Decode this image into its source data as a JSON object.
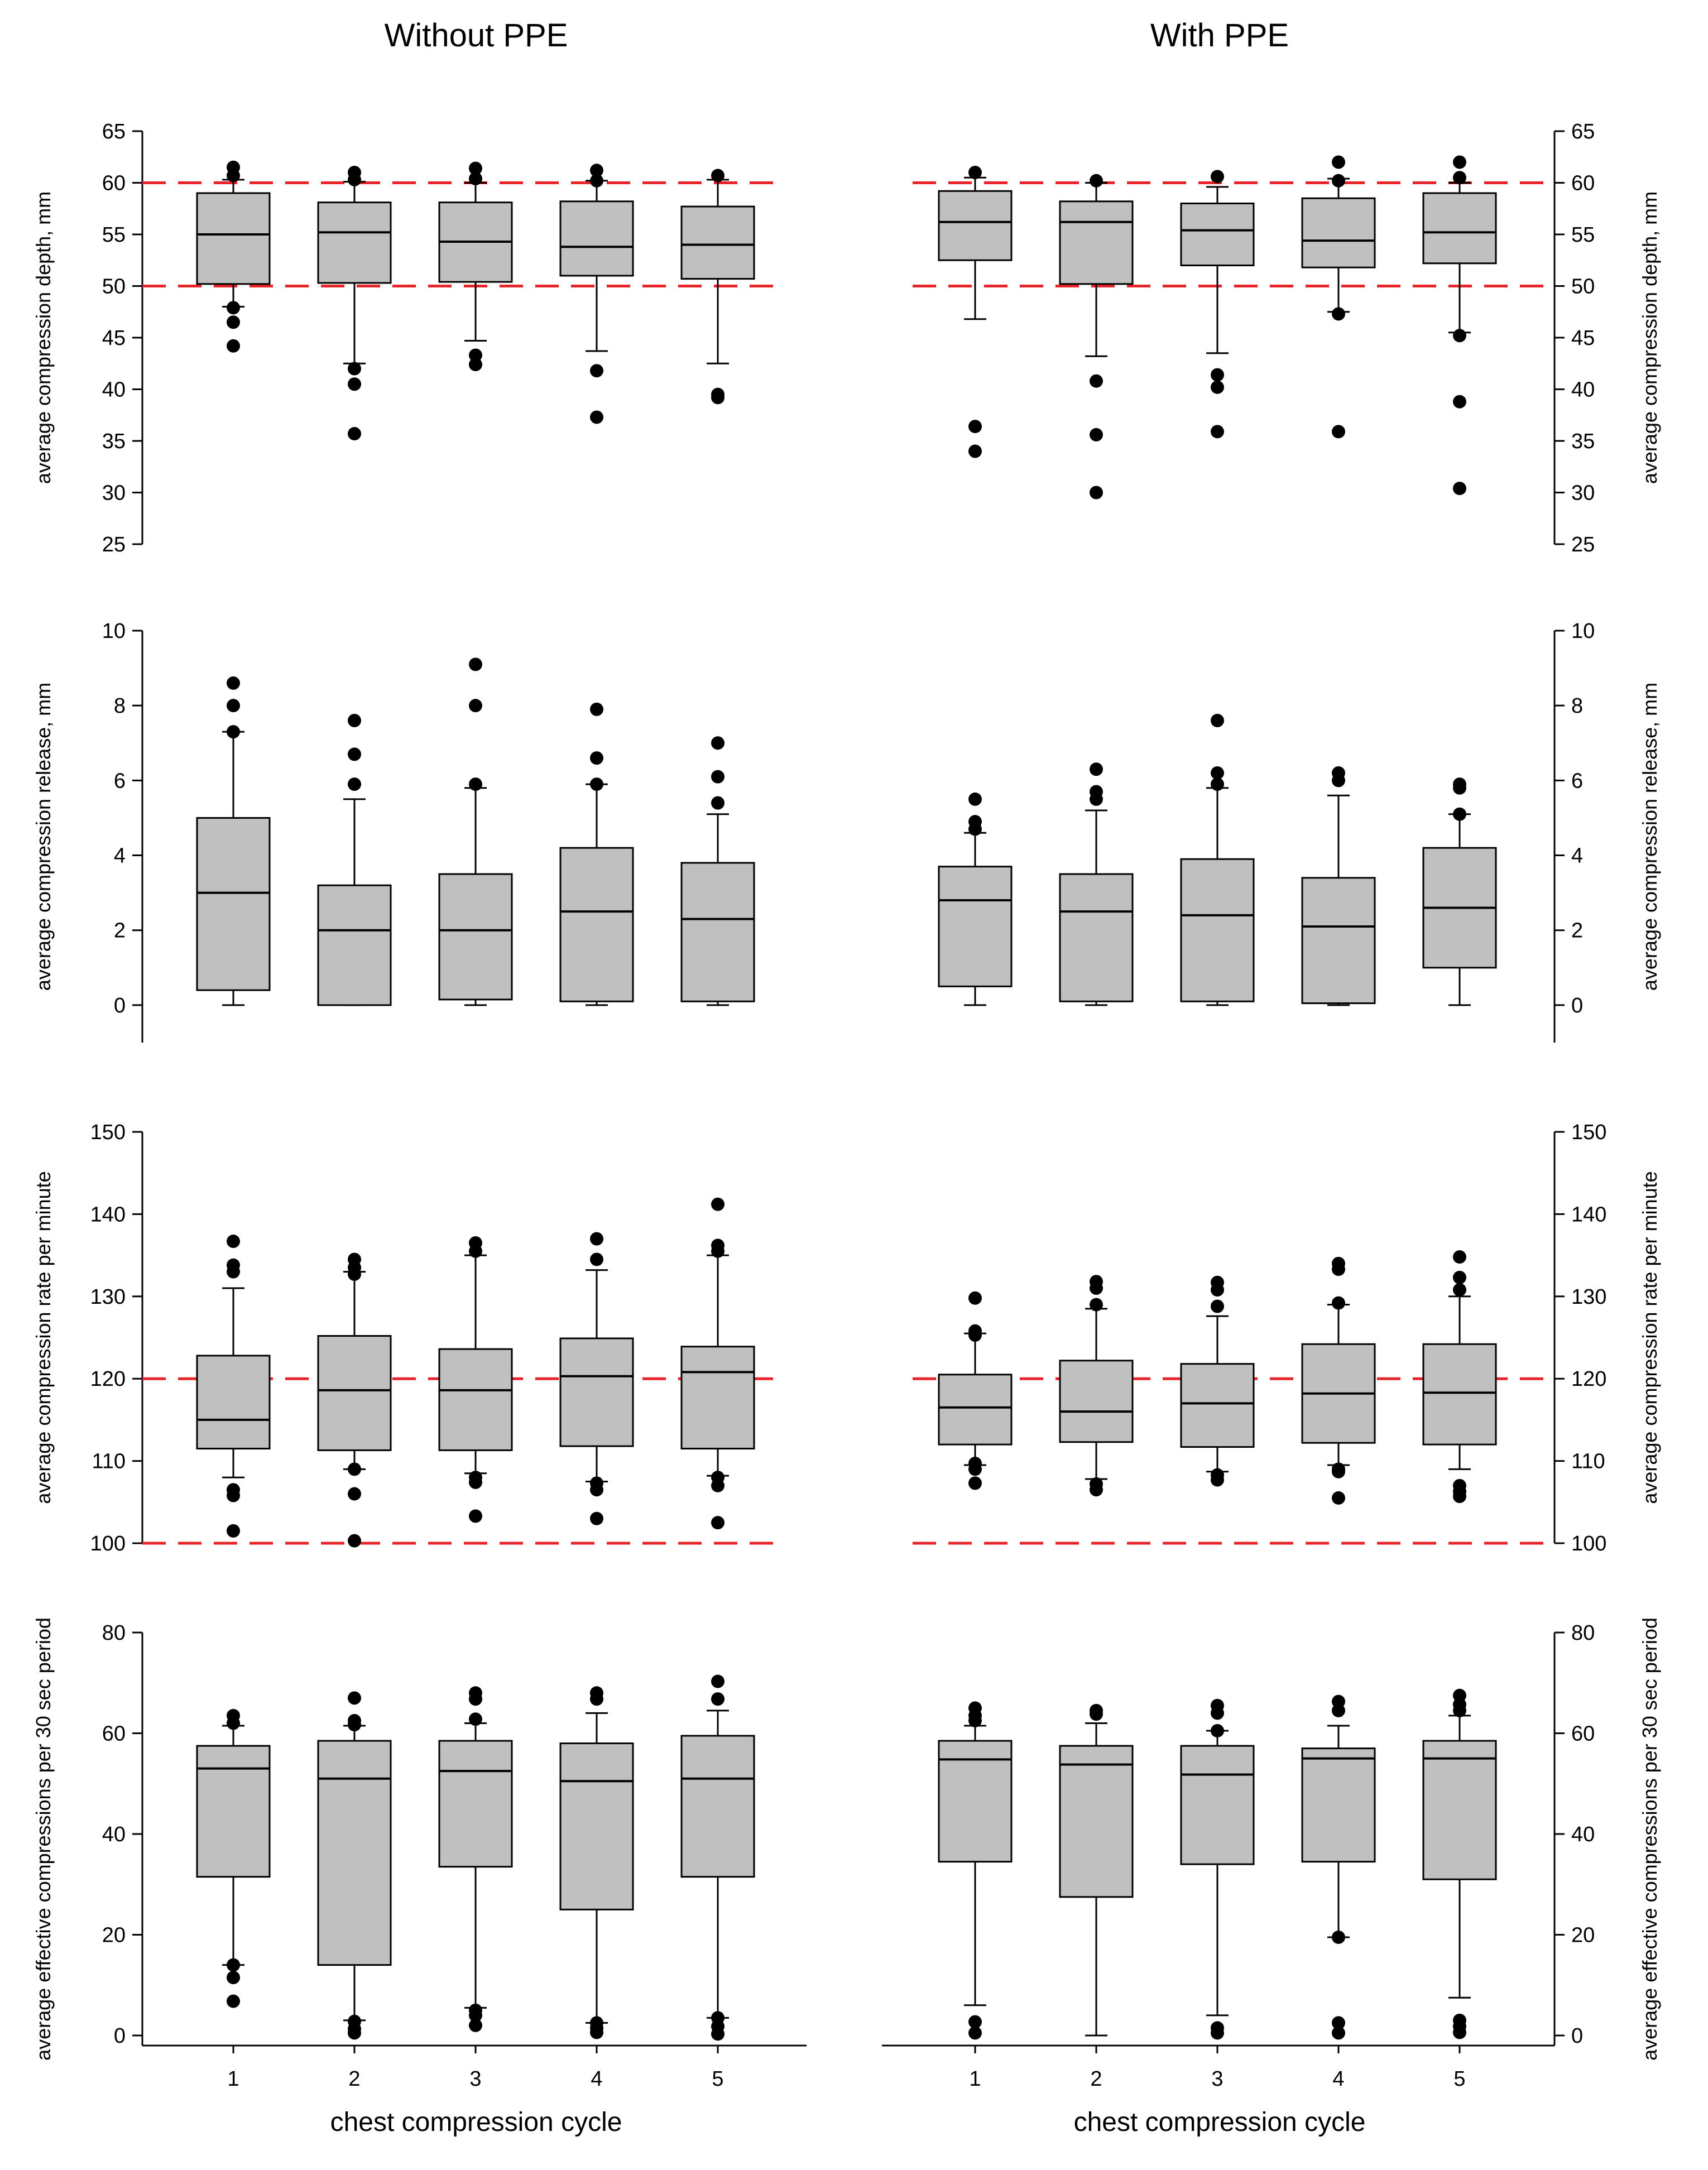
{
  "titles": {
    "left": "Without PPE",
    "right": "With PPE"
  },
  "x_axis_label": "chest compression cycle",
  "colors": {
    "box_fill": "#c0c0c0",
    "box_stroke": "#000000",
    "ref_line": "#e8232a",
    "outlier": "#000000"
  },
  "chart_data": [
    {
      "type": "boxplot",
      "title": "Without PPE",
      "panel": "Without PPE",
      "xlabel": "chest compression cycle",
      "ylabel": "average compression depth, mm",
      "categories": [
        "1",
        "2",
        "3",
        "4",
        "5"
      ],
      "ylim": [
        25,
        65
      ],
      "yticks": [
        25,
        30,
        35,
        40,
        45,
        50,
        55,
        60,
        65
      ],
      "reference_lines": [
        50,
        60
      ],
      "boxes": [
        {
          "q1": 50.2,
          "median": 55.0,
          "q3": 59.0,
          "whisker_low": 48.0,
          "whisker_high": 60.3,
          "outliers": [
            61.5,
            60.7,
            47.9,
            46.5,
            44.2
          ]
        },
        {
          "q1": 50.3,
          "median": 55.2,
          "q3": 58.1,
          "whisker_low": 42.5,
          "whisker_high": 60.1,
          "outliers": [
            61.0,
            60.3,
            42.0,
            40.5,
            35.7
          ]
        },
        {
          "q1": 50.4,
          "median": 54.3,
          "q3": 58.1,
          "whisker_low": 44.7,
          "whisker_high": 60.0,
          "outliers": [
            61.4,
            60.4,
            43.3,
            42.4
          ]
        },
        {
          "q1": 51.0,
          "median": 53.8,
          "q3": 58.2,
          "whisker_low": 43.7,
          "whisker_high": 60.2,
          "outliers": [
            61.2,
            60.2,
            41.8,
            37.3
          ]
        },
        {
          "q1": 50.7,
          "median": 54.0,
          "q3": 57.7,
          "whisker_low": 42.5,
          "whisker_high": 60.3,
          "outliers": [
            60.7,
            39.5,
            39.2
          ]
        }
      ]
    },
    {
      "type": "boxplot",
      "title": "With PPE",
      "panel": "With PPE",
      "xlabel": "chest compression cycle",
      "ylabel": "average compression depth, mm",
      "categories": [
        "1",
        "2",
        "3",
        "4",
        "5"
      ],
      "ylim": [
        25,
        65
      ],
      "yticks": [
        25,
        30,
        35,
        40,
        45,
        50,
        55,
        60,
        65
      ],
      "reference_lines": [
        50,
        60
      ],
      "boxes": [
        {
          "q1": 52.5,
          "median": 56.2,
          "q3": 59.2,
          "whisker_low": 46.8,
          "whisker_high": 60.5,
          "outliers": [
            61.0,
            36.4,
            34.0
          ]
        },
        {
          "q1": 50.2,
          "median": 56.2,
          "q3": 58.2,
          "whisker_low": 43.2,
          "whisker_high": 60.0,
          "outliers": [
            60.2,
            40.8,
            35.6,
            30.0
          ]
        },
        {
          "q1": 52.0,
          "median": 55.4,
          "q3": 58.0,
          "whisker_low": 43.5,
          "whisker_high": 59.6,
          "outliers": [
            60.6,
            41.4,
            40.2,
            35.9
          ]
        },
        {
          "q1": 51.8,
          "median": 54.4,
          "q3": 58.5,
          "whisker_low": 47.5,
          "whisker_high": 60.4,
          "outliers": [
            62.0,
            60.2,
            47.3,
            35.9
          ]
        },
        {
          "q1": 52.2,
          "median": 55.2,
          "q3": 59.0,
          "whisker_low": 45.5,
          "whisker_high": 60.0,
          "outliers": [
            62.0,
            60.5,
            45.2,
            38.8,
            30.4
          ]
        }
      ]
    },
    {
      "type": "boxplot",
      "title": "Without PPE",
      "panel": "Without PPE",
      "xlabel": "chest compression cycle",
      "ylabel": "average compression release, mm",
      "categories": [
        "1",
        "2",
        "3",
        "4",
        "5"
      ],
      "ylim": [
        -1,
        10
      ],
      "yticks": [
        0,
        2,
        4,
        6,
        8,
        10
      ],
      "reference_lines": [],
      "boxes": [
        {
          "q1": 0.4,
          "median": 3.0,
          "q3": 5.0,
          "whisker_low": 0.0,
          "whisker_high": 7.3,
          "outliers": [
            8.6,
            8.0,
            7.3
          ]
        },
        {
          "q1": 0.0,
          "median": 2.0,
          "q3": 3.2,
          "whisker_low": 0.0,
          "whisker_high": 5.5,
          "outliers": [
            7.6,
            6.7,
            5.9
          ]
        },
        {
          "q1": 0.15,
          "median": 2.0,
          "q3": 3.5,
          "whisker_low": 0.0,
          "whisker_high": 5.8,
          "outliers": [
            9.1,
            8.0,
            5.9
          ]
        },
        {
          "q1": 0.1,
          "median": 2.5,
          "q3": 4.2,
          "whisker_low": 0.0,
          "whisker_high": 5.9,
          "outliers": [
            7.9,
            6.6,
            5.9
          ]
        },
        {
          "q1": 0.1,
          "median": 2.3,
          "q3": 3.8,
          "whisker_low": 0.0,
          "whisker_high": 5.1,
          "outliers": [
            7.0,
            6.1,
            5.4
          ]
        }
      ]
    },
    {
      "type": "boxplot",
      "title": "With PPE",
      "panel": "With PPE",
      "xlabel": "chest compression cycle",
      "ylabel": "average compression release, mm",
      "categories": [
        "1",
        "2",
        "3",
        "4",
        "5"
      ],
      "ylim": [
        -1,
        10
      ],
      "yticks": [
        0,
        2,
        4,
        6,
        8,
        10
      ],
      "reference_lines": [],
      "boxes": [
        {
          "q1": 0.5,
          "median": 2.8,
          "q3": 3.7,
          "whisker_low": 0.0,
          "whisker_high": 4.6,
          "outliers": [
            5.5,
            4.9,
            4.7
          ]
        },
        {
          "q1": 0.1,
          "median": 2.5,
          "q3": 3.5,
          "whisker_low": 0.0,
          "whisker_high": 5.2,
          "outliers": [
            6.3,
            5.7,
            5.5
          ]
        },
        {
          "q1": 0.1,
          "median": 2.4,
          "q3": 3.9,
          "whisker_low": 0.0,
          "whisker_high": 5.8,
          "outliers": [
            7.6,
            6.2,
            5.9
          ]
        },
        {
          "q1": 0.05,
          "median": 2.1,
          "q3": 3.4,
          "whisker_low": 0.0,
          "whisker_high": 5.6,
          "outliers": [
            6.2,
            6.0
          ]
        },
        {
          "q1": 1.0,
          "median": 2.6,
          "q3": 4.2,
          "whisker_low": 0.0,
          "whisker_high": 5.1,
          "outliers": [
            5.9,
            5.8,
            5.1
          ]
        }
      ]
    },
    {
      "type": "boxplot",
      "title": "Without PPE",
      "panel": "Without PPE",
      "xlabel": "chest compression cycle",
      "ylabel": "average compression rate per minute",
      "categories": [
        "1",
        "2",
        "3",
        "4",
        "5"
      ],
      "ylim": [
        100,
        150
      ],
      "yticks": [
        100,
        110,
        120,
        130,
        140,
        150
      ],
      "reference_lines": [
        100,
        120
      ],
      "boxes": [
        {
          "q1": 111.5,
          "median": 115.0,
          "q3": 122.8,
          "whisker_low": 108.0,
          "whisker_high": 131.0,
          "outliers": [
            136.7,
            133.8,
            133.0,
            106.5,
            105.8,
            101.5
          ]
        },
        {
          "q1": 111.3,
          "median": 118.6,
          "q3": 125.2,
          "whisker_low": 109.0,
          "whisker_high": 133.0,
          "outliers": [
            134.5,
            133.5,
            132.7,
            109.0,
            106.0,
            100.3
          ]
        },
        {
          "q1": 111.3,
          "median": 118.6,
          "q3": 123.6,
          "whisker_low": 108.5,
          "whisker_high": 135.0,
          "outliers": [
            136.5,
            135.5,
            108.0,
            107.4,
            103.3
          ]
        },
        {
          "q1": 111.8,
          "median": 120.3,
          "q3": 124.9,
          "whisker_low": 107.5,
          "whisker_high": 133.2,
          "outliers": [
            137.0,
            134.5,
            107.3,
            106.5,
            103.0
          ]
        },
        {
          "q1": 111.5,
          "median": 120.8,
          "q3": 123.9,
          "whisker_low": 108.2,
          "whisker_high": 135.0,
          "outliers": [
            141.2,
            136.2,
            135.5,
            108.0,
            107.0,
            102.5
          ]
        }
      ]
    },
    {
      "type": "boxplot",
      "title": "With PPE",
      "panel": "With PPE",
      "xlabel": "chest compression cycle",
      "ylabel": "average compression rate per minute",
      "categories": [
        "1",
        "2",
        "3",
        "4",
        "5"
      ],
      "ylim": [
        100,
        150
      ],
      "yticks": [
        100,
        110,
        120,
        130,
        140,
        150
      ],
      "reference_lines": [
        100,
        120
      ],
      "boxes": [
        {
          "q1": 112.0,
          "median": 116.5,
          "q3": 120.5,
          "whisker_low": 109.5,
          "whisker_high": 125.5,
          "outliers": [
            129.8,
            125.8,
            125.3,
            109.7,
            109.0,
            107.3
          ]
        },
        {
          "q1": 112.3,
          "median": 116.0,
          "q3": 122.2,
          "whisker_low": 107.8,
          "whisker_high": 128.5,
          "outliers": [
            131.8,
            131.0,
            129.0,
            107.2,
            106.5
          ]
        },
        {
          "q1": 111.7,
          "median": 117.0,
          "q3": 121.8,
          "whisker_low": 108.7,
          "whisker_high": 127.6,
          "outliers": [
            131.7,
            130.8,
            128.8,
            108.3,
            107.7
          ]
        },
        {
          "q1": 112.2,
          "median": 118.2,
          "q3": 124.2,
          "whisker_low": 109.5,
          "whisker_high": 129.0,
          "outliers": [
            134.0,
            133.3,
            129.2,
            109.0,
            108.7,
            105.5
          ]
        },
        {
          "q1": 112.0,
          "median": 118.3,
          "q3": 124.2,
          "whisker_low": 109.0,
          "whisker_high": 130.0,
          "outliers": [
            134.8,
            132.3,
            130.8,
            107.0,
            106.3,
            105.7
          ]
        }
      ]
    },
    {
      "type": "boxplot",
      "title": "Without PPE",
      "panel": "Without PPE",
      "xlabel": "chest compression cycle",
      "ylabel": "average effective compressions per 30 sec period",
      "categories": [
        "1",
        "2",
        "3",
        "4",
        "5"
      ],
      "ylim": [
        -2,
        80
      ],
      "yticks": [
        0,
        20,
        40,
        60,
        80
      ],
      "reference_lines": [],
      "boxes": [
        {
          "q1": 31.5,
          "median": 53.0,
          "q3": 57.5,
          "whisker_low": 14.0,
          "whisker_high": 61.5,
          "outliers": [
            63.5,
            62.0,
            14.0,
            11.5,
            6.8
          ]
        },
        {
          "q1": 14.0,
          "median": 51.0,
          "q3": 58.5,
          "whisker_low": 3.0,
          "whisker_high": 61.5,
          "outliers": [
            67.0,
            62.5,
            61.7,
            2.8,
            1.3,
            0.5
          ]
        },
        {
          "q1": 33.5,
          "median": 52.5,
          "q3": 58.5,
          "whisker_low": 5.5,
          "whisker_high": 62.0,
          "outliers": [
            68.0,
            66.8,
            62.8,
            5.0,
            4.0,
            2.0
          ]
        },
        {
          "q1": 25.0,
          "median": 50.5,
          "q3": 58.0,
          "whisker_low": 2.5,
          "whisker_high": 64.0,
          "outliers": [
            68.0,
            66.8,
            2.5,
            1.5,
            0.6
          ]
        },
        {
          "q1": 31.5,
          "median": 51.0,
          "q3": 59.5,
          "whisker_low": 3.5,
          "whisker_high": 64.5,
          "outliers": [
            70.3,
            66.8,
            3.5,
            1.8,
            0.3
          ]
        }
      ]
    },
    {
      "type": "boxplot",
      "title": "With PPE",
      "panel": "With PPE",
      "xlabel": "chest compression cycle",
      "ylabel": "average effective compressions per 30 sec period",
      "categories": [
        "1",
        "2",
        "3",
        "4",
        "5"
      ],
      "ylim": [
        -2,
        80
      ],
      "yticks": [
        0,
        20,
        40,
        60,
        80
      ],
      "reference_lines": [],
      "boxes": [
        {
          "q1": 34.5,
          "median": 54.8,
          "q3": 58.5,
          "whisker_low": 6.0,
          "whisker_high": 61.5,
          "outliers": [
            65.0,
            63.5,
            62.5,
            2.7,
            0.5
          ]
        },
        {
          "q1": 27.5,
          "median": 53.8,
          "q3": 57.5,
          "whisker_low": 0.0,
          "whisker_high": 62.0,
          "outliers": [
            64.5,
            63.8
          ]
        },
        {
          "q1": 34.0,
          "median": 51.8,
          "q3": 57.5,
          "whisker_low": 4.0,
          "whisker_high": 60.5,
          "outliers": [
            65.5,
            64.0,
            60.5,
            1.5,
            0.5
          ]
        },
        {
          "q1": 34.5,
          "median": 55.0,
          "q3": 57.0,
          "whisker_low": 19.5,
          "whisker_high": 61.5,
          "outliers": [
            66.3,
            64.5,
            19.5,
            2.5,
            0.5
          ]
        },
        {
          "q1": 31.0,
          "median": 55.0,
          "q3": 58.5,
          "whisker_low": 7.5,
          "whisker_high": 63.5,
          "outliers": [
            67.5,
            65.7,
            64.5,
            3.0,
            1.8,
            0.6
          ]
        }
      ]
    }
  ]
}
